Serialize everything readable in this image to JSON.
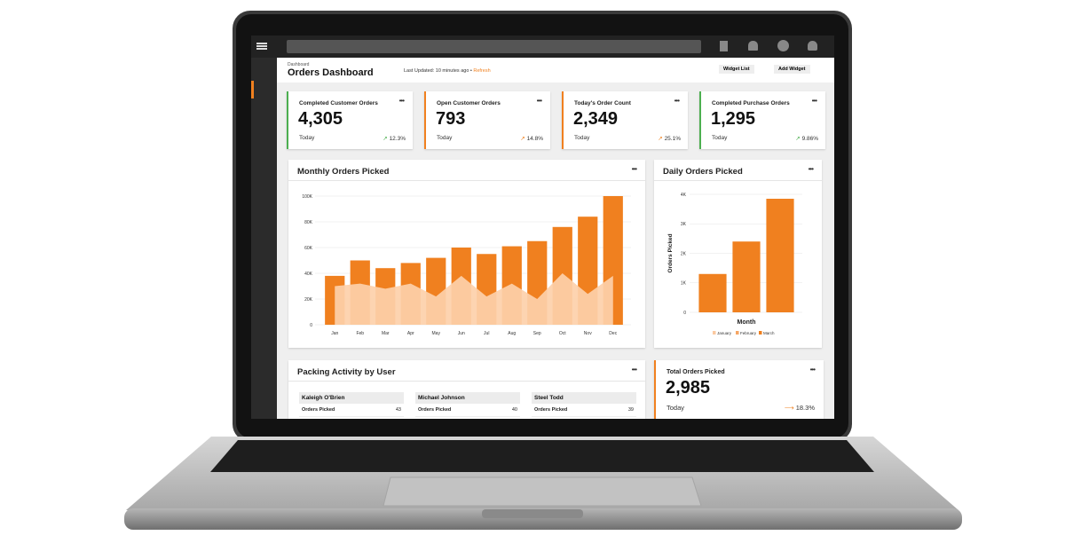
{
  "header": {
    "breadcrumb": "Dashboard",
    "title": "Orders Dashboard",
    "last_updated": "Last Updated: 10 minutes ago •",
    "refresh": "Refresh",
    "buttons": [
      "Widget List",
      "Add Widget"
    ]
  },
  "kpis": [
    {
      "title": "Completed Customer Orders",
      "value": "4,305",
      "period": "Today",
      "change": "12.3%",
      "accent": "#4caf50"
    },
    {
      "title": "Open Customer Orders",
      "value": "793",
      "period": "Today",
      "change": "14.8%",
      "accent": "#f0801f"
    },
    {
      "title": "Today's Order Count",
      "value": "2,349",
      "period": "Today",
      "change": "25.1%",
      "accent": "#f0801f"
    },
    {
      "title": "Completed Purchase Orders",
      "value": "1,295",
      "period": "Today",
      "change": "9.86%",
      "accent": "#4caf50"
    }
  ],
  "chart_data": [
    {
      "type": "bar",
      "title": "Monthly Orders Picked",
      "categories": [
        "Jan",
        "Feb",
        "Mar",
        "Apr",
        "May",
        "Jun",
        "Jul",
        "Aug",
        "Sep",
        "Oct",
        "Nov",
        "Dec"
      ],
      "series": [
        {
          "type": "bar",
          "color": "#f0801f",
          "values": [
            38000,
            50000,
            44000,
            48000,
            52000,
            60000,
            55000,
            61000,
            65000,
            76000,
            84000,
            100000
          ]
        },
        {
          "type": "area",
          "color": "#fdd0aa",
          "values": [
            30000,
            32000,
            28000,
            32000,
            22000,
            38000,
            22000,
            32000,
            20000,
            40000,
            24000,
            38000
          ]
        }
      ],
      "ylim": [
        0,
        100000
      ],
      "yticks": [
        0,
        {
          "value": 20000,
          "label": "20K"
        },
        {
          "value": 40000,
          "label": "40K"
        },
        {
          "value": 60000,
          "label": "60K"
        },
        {
          "value": 80000,
          "label": "80K"
        },
        {
          "value": 100000,
          "label": "100K"
        }
      ],
      "grid": true
    },
    {
      "type": "bar",
      "title": "Daily Orders Picked",
      "ylabel": "Orders Picked",
      "xlabel": "Month",
      "categories": [
        "January",
        "February",
        "March"
      ],
      "values": [
        1300,
        2400,
        3850
      ],
      "color": "#f0801f",
      "legend_colors": [
        "#fbc9a0",
        "#f6a664",
        "#f0801f"
      ],
      "ylim": [
        0,
        4000
      ],
      "yticks": [
        0,
        {
          "value": 1000,
          "label": "1K"
        },
        {
          "value": 2000,
          "label": "2K"
        },
        {
          "value": 3000,
          "label": "3K"
        },
        {
          "value": 4000,
          "label": "4K"
        }
      ],
      "grid": true,
      "legend": "bottom"
    }
  ],
  "packing": {
    "title": "Packing Activity by User",
    "users": [
      {
        "name": "Kaleigh O'Brien",
        "metric": "Orders Picked",
        "count": "43"
      },
      {
        "name": "Michael Johnson",
        "metric": "Orders Picked",
        "count": "40"
      },
      {
        "name": "Steel Todd",
        "metric": "Orders Picked",
        "count": "39"
      }
    ]
  },
  "total": {
    "title": "Total Orders Picked",
    "value": "2,985",
    "period": "Today",
    "change": "18.3%"
  }
}
